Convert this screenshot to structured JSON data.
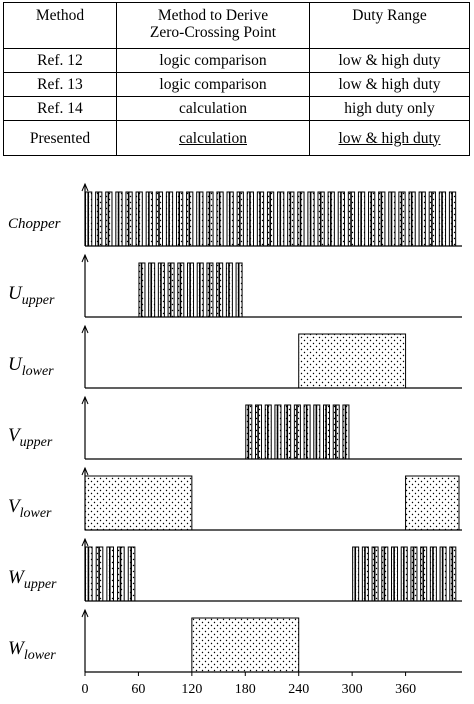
{
  "table": {
    "headers": [
      "Method",
      "Method to Derive Zero-Crossing Point",
      "Duty Range"
    ],
    "rows": [
      {
        "method": "Ref. 12",
        "derive": "logic comparison",
        "duty": "low & high duty"
      },
      {
        "method": "Ref. 13",
        "derive": "logic comparison",
        "duty": "low & high duty"
      },
      {
        "method": "Ref. 14",
        "derive": "calculation",
        "duty": "high duty only"
      },
      {
        "method": "Presented",
        "derive": "calculation",
        "duty": "low & high duty"
      }
    ]
  },
  "chart_data": {
    "type": "timing",
    "x_ticks": [
      0,
      60,
      120,
      180,
      240,
      300,
      360
    ],
    "x_range": [
      0,
      420
    ],
    "signals": [
      {
        "base": "Chopper",
        "sub": "",
        "mode": "pwm",
        "intervals": [
          [
            0,
            420
          ]
        ]
      },
      {
        "base": "U",
        "sub": "upper",
        "mode": "pwm",
        "intervals": [
          [
            60,
            180
          ]
        ]
      },
      {
        "base": "U",
        "sub": "lower",
        "mode": "solid",
        "intervals": [
          [
            240,
            360
          ]
        ]
      },
      {
        "base": "V",
        "sub": "upper",
        "mode": "pwm",
        "intervals": [
          [
            180,
            300
          ]
        ]
      },
      {
        "base": "V",
        "sub": "lower",
        "mode": "solid",
        "intervals": [
          [
            0,
            120
          ],
          [
            360,
            420
          ]
        ]
      },
      {
        "base": "W",
        "sub": "upper",
        "mode": "pwm",
        "intervals": [
          [
            0,
            60
          ],
          [
            300,
            420
          ]
        ]
      },
      {
        "base": "W",
        "sub": "lower",
        "mode": "solid",
        "intervals": [
          [
            120,
            240
          ]
        ]
      }
    ]
  }
}
